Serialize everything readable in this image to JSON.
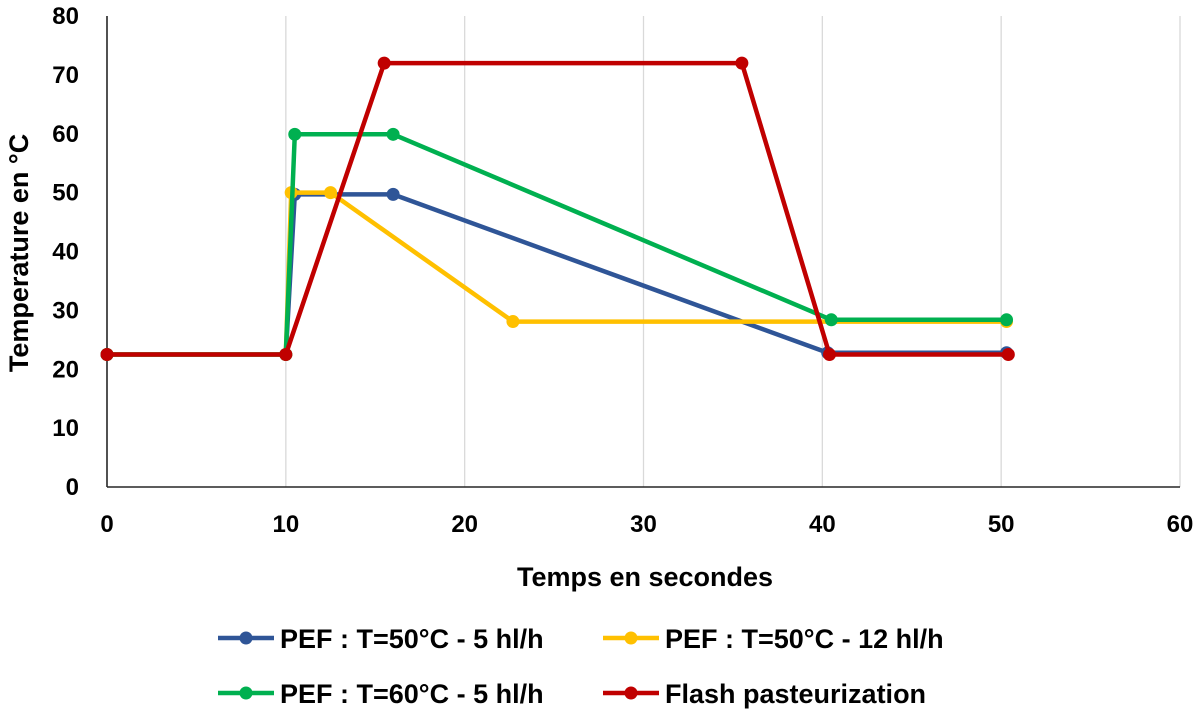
{
  "chart_data": {
    "type": "line",
    "title": "",
    "xlabel": "Temps en secondes",
    "ylabel": "Temperature en °C",
    "xlim": [
      0,
      60
    ],
    "ylim": [
      0,
      80
    ],
    "x_ticks": [
      0,
      10,
      20,
      30,
      40,
      50,
      60
    ],
    "y_ticks": [
      0,
      10,
      20,
      30,
      40,
      50,
      60,
      70,
      80
    ],
    "grid": "vertical",
    "legend_position": "bottom",
    "series": [
      {
        "name": "PEF : T=50°C - 5 hl/h",
        "color": "#2f5597",
        "points": [
          [
            0,
            22.5
          ],
          [
            10,
            22.5
          ],
          [
            10.5,
            49.7
          ],
          [
            16,
            49.7
          ],
          [
            40.3,
            22.8
          ],
          [
            50.3,
            22.8
          ]
        ]
      },
      {
        "name": "PEF : T=50°C - 12 hl/h",
        "color": "#ffc000",
        "points": [
          [
            0,
            22.5
          ],
          [
            10,
            22.5
          ],
          [
            10.3,
            50
          ],
          [
            12.5,
            50
          ],
          [
            22.7,
            28.1
          ],
          [
            50.3,
            28.1
          ]
        ]
      },
      {
        "name": "PEF : T=60°C - 5 hl/h",
        "color": "#00b050",
        "points": [
          [
            0,
            22.5
          ],
          [
            10,
            22.5
          ],
          [
            10.5,
            59.9
          ],
          [
            16,
            59.9
          ],
          [
            40.5,
            28.4
          ],
          [
            50.3,
            28.4
          ]
        ]
      },
      {
        "name": "Flash pasteurization",
        "color": "#c00000",
        "points": [
          [
            0,
            22.5
          ],
          [
            10,
            22.5
          ],
          [
            15.5,
            72
          ],
          [
            35.5,
            72
          ],
          [
            40.4,
            22.5
          ],
          [
            50.4,
            22.5
          ]
        ]
      }
    ]
  }
}
